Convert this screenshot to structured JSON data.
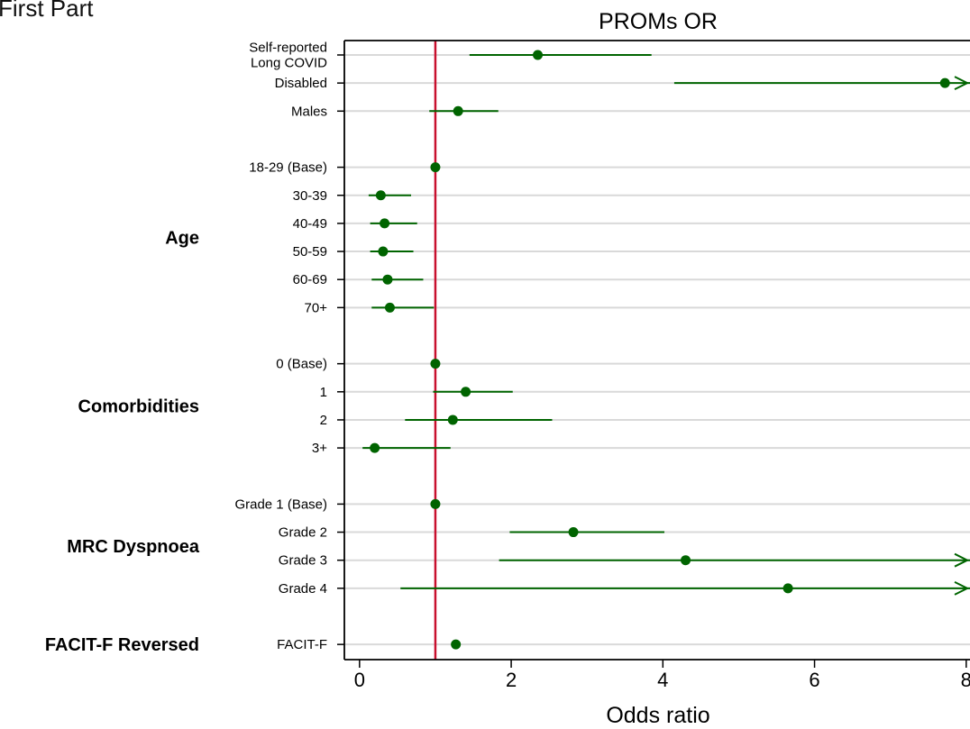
{
  "corner_text": "First Part",
  "chart_data": {
    "type": "forest",
    "title": "PROMs OR",
    "xlabel": "Odds ratio",
    "xlim": [
      -0.2,
      8.05
    ],
    "xticks": [
      0,
      2,
      4,
      6,
      8
    ],
    "reference_line": 1,
    "grid": true,
    "colors": {
      "marker": "#006400",
      "ci": "#006400",
      "reference": "#c8102e",
      "grid": "#d9d9d9"
    },
    "groups": [
      {
        "label": "",
        "rows": [
          {
            "label": [
              "Self-reported",
              "Long COVID"
            ],
            "or": 2.35,
            "lo": 1.45,
            "hi": 3.85
          },
          {
            "label": [
              "Disabled"
            ],
            "or": 7.72,
            "lo": 4.15,
            "hi": 8.05,
            "truncated": true
          },
          {
            "label": [
              "Males"
            ],
            "or": 1.3,
            "lo": 0.92,
            "hi": 1.83
          }
        ]
      },
      {
        "label": "Age",
        "rows": [
          {
            "label": [
              "18-29 (Base)"
            ],
            "or": 1.0
          },
          {
            "label": [
              "30-39"
            ],
            "or": 0.28,
            "lo": 0.12,
            "hi": 0.68
          },
          {
            "label": [
              "40-49"
            ],
            "or": 0.33,
            "lo": 0.14,
            "hi": 0.76
          },
          {
            "label": [
              "50-59"
            ],
            "or": 0.31,
            "lo": 0.14,
            "hi": 0.71
          },
          {
            "label": [
              "60-69"
            ],
            "or": 0.37,
            "lo": 0.16,
            "hi": 0.84
          },
          {
            "label": [
              "70+"
            ],
            "or": 0.4,
            "lo": 0.16,
            "hi": 0.98
          }
        ]
      },
      {
        "label": "Comorbidities",
        "rows": [
          {
            "label": [
              "0 (Base)"
            ],
            "or": 1.0
          },
          {
            "label": [
              "1"
            ],
            "or": 1.4,
            "lo": 0.97,
            "hi": 2.02
          },
          {
            "label": [
              "2"
            ],
            "or": 1.23,
            "lo": 0.6,
            "hi": 2.54
          },
          {
            "label": [
              "3+"
            ],
            "or": 0.2,
            "lo": 0.04,
            "hi": 1.2
          }
        ]
      },
      {
        "label": "MRC Dyspnoea",
        "rows": [
          {
            "label": [
              "Grade 1 (Base)"
            ],
            "or": 1.0
          },
          {
            "label": [
              "Grade 2"
            ],
            "or": 2.82,
            "lo": 1.98,
            "hi": 4.02
          },
          {
            "label": [
              "Grade 3"
            ],
            "or": 4.3,
            "lo": 1.84,
            "hi": 8.05,
            "truncated": true
          },
          {
            "label": [
              "Grade 4"
            ],
            "or": 5.65,
            "lo": 0.54,
            "hi": 8.05,
            "truncated": true
          }
        ]
      },
      {
        "label": "FACIT-F Reversed",
        "rows": [
          {
            "label": [
              "FACIT-F"
            ],
            "or": 1.27
          }
        ]
      }
    ]
  }
}
